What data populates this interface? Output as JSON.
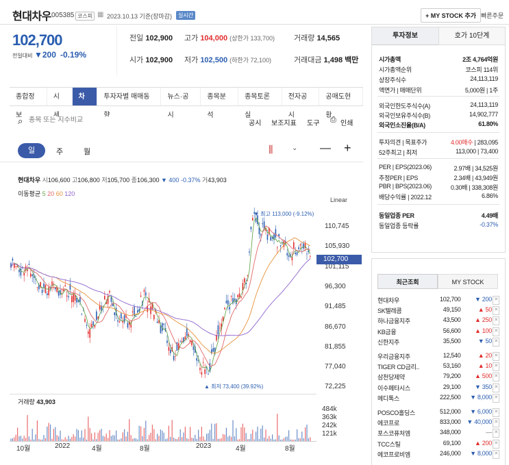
{
  "header": {
    "name": "현대차우",
    "code": "005385",
    "market": "코스피",
    "date": "2023.10.13 기준(장마감)",
    "realtime": "실시간",
    "mystock_btn": "+ MY STOCK 추가",
    "quick_btn": "빠른주문"
  },
  "quote": {
    "price": "102,700",
    "change_label": "전일대비",
    "change": "▼200",
    "change_pct": "-0.19%",
    "prev_label": "전일",
    "prev": "102,900",
    "high_label": "고가",
    "high": "104,000",
    "high_limit": "(상한가 133,700)",
    "vol_label": "거래량",
    "vol": "14,565",
    "open_label": "시가",
    "open": "102,900",
    "low_label": "저가",
    "low": "102,500",
    "low_limit": "(하한가 72,100)",
    "amt_label": "거래대금",
    "amt": "1,498 백만"
  },
  "tabs": [
    "종합정보",
    "시세",
    "차트",
    "투자자별 매매동향",
    "뉴스·공시",
    "종목분석",
    "종목토론실",
    "전자공시",
    "공매도현황"
  ],
  "toolbar": {
    "search_placeholder": "종목 또는 지수비교",
    "notice": "공시",
    "indicator": "보조지표",
    "tools": "도구",
    "print": "인쇄"
  },
  "periods": [
    "일",
    "주",
    "월"
  ],
  "chart_info": {
    "name": "현대차우",
    "open_l": "시",
    "open": "106,600",
    "high_l": "고",
    "high": "106,800",
    "low_l": "저",
    "low": "105,700",
    "close_l": "종",
    "close": "106,300",
    "chg": "▼ 400 -0.37%",
    "vol_l": "거",
    "vol": "43,903",
    "ma_label": "이동평균",
    "ma": [
      "5",
      "20",
      "60",
      "120"
    ],
    "scale": "Linear",
    "max_note": "최고 113,000 (-9.12%)",
    "min_note": "최저 73,400 (39.92%)",
    "last": "102,700",
    "vol_title": "거래량",
    "vol_val": "43,903"
  },
  "chart_data": {
    "type": "candlestick",
    "y_ticks": [
      "110,745",
      "105,930",
      "101,115",
      "96,300",
      "91,485",
      "86,670",
      "81,855",
      "77,040",
      "72,225"
    ],
    "vol_ticks": [
      "484k",
      "363k",
      "242k",
      "121k"
    ],
    "x_ticks": [
      "10월",
      "2022",
      "4월",
      "8월",
      "2023",
      "4월",
      "8월"
    ],
    "max": 113000,
    "min": 73400,
    "last": 102700
  },
  "invest": {
    "tab1": "투자정보",
    "tab2": "호가 10단계",
    "rows": [
      [
        "시가총액",
        "2조 4,764억원"
      ],
      [
        "시가총액순위",
        "코스피 114위"
      ],
      [
        "상장주식수",
        "24,113,119"
      ],
      [
        "액면가 | 매매단위",
        "5,000원 | 1주"
      ],
      [
        "외국인한도주식수(A)",
        "24,113,119"
      ],
      [
        "외국인보유주식수(B)",
        "14,902,777"
      ],
      [
        "외국인소진율(B/A)",
        "61.80%"
      ],
      [
        "투자의견 | 목표주가",
        "4.00매수 | 283,095"
      ],
      [
        "52주최고 | 최저",
        "113,000 | 73,400"
      ],
      [
        "PER | EPS(2023.06)",
        "2.97배 | 34,525원"
      ],
      [
        "추정PER | EPS",
        "2.34배 | 43,949원"
      ],
      [
        "PBR | BPS(2023.06)",
        "0.30배 | 338,308원"
      ],
      [
        "배당수익률 | 2022.12",
        "6.86%"
      ],
      [
        "동일업종 PER",
        "4.49배"
      ],
      [
        "동일업종 등락률",
        "-0.37%"
      ]
    ]
  },
  "recent": {
    "tab1": "최근조회",
    "tab2": "MY STOCK",
    "items": [
      [
        "현대차우",
        "102,700",
        "▼ 200",
        "dn"
      ],
      [
        "SK텔레콤",
        "49,150",
        "▲ 50",
        "up"
      ],
      [
        "하나금융지주",
        "43,500",
        "▲ 250",
        "up"
      ],
      [
        "KB금융",
        "56,600",
        "▲ 100",
        "up"
      ],
      [
        "신한지주",
        "35,500",
        "▼ 50",
        "dn"
      ],
      [
        "우리금융지주",
        "12,540",
        "▲ 20",
        "up"
      ],
      [
        "TIGER CD금리..",
        "53,160",
        "▲ 10",
        "up"
      ],
      [
        "삼천당제약",
        "79,200",
        "▲ 500",
        "up"
      ],
      [
        "이수페타시스",
        "29,100",
        "▼ 350",
        "dn"
      ],
      [
        "메디톡스",
        "222,500",
        "▼ 8,000",
        "dn"
      ],
      [
        "POSCO홀딩스",
        "512,000",
        "▼ 6,000",
        "dn"
      ],
      [
        "에코프로",
        "833,000",
        "▼ 40,000",
        "dn"
      ],
      [
        "포스코퓨처엠",
        "348,000",
        "—",
        "fl"
      ],
      [
        "TCC스틸",
        "69,100",
        "▲ 200",
        "up"
      ],
      [
        "에코프로비엠",
        "246,000",
        "▼ 8,000",
        "dn"
      ]
    ]
  }
}
